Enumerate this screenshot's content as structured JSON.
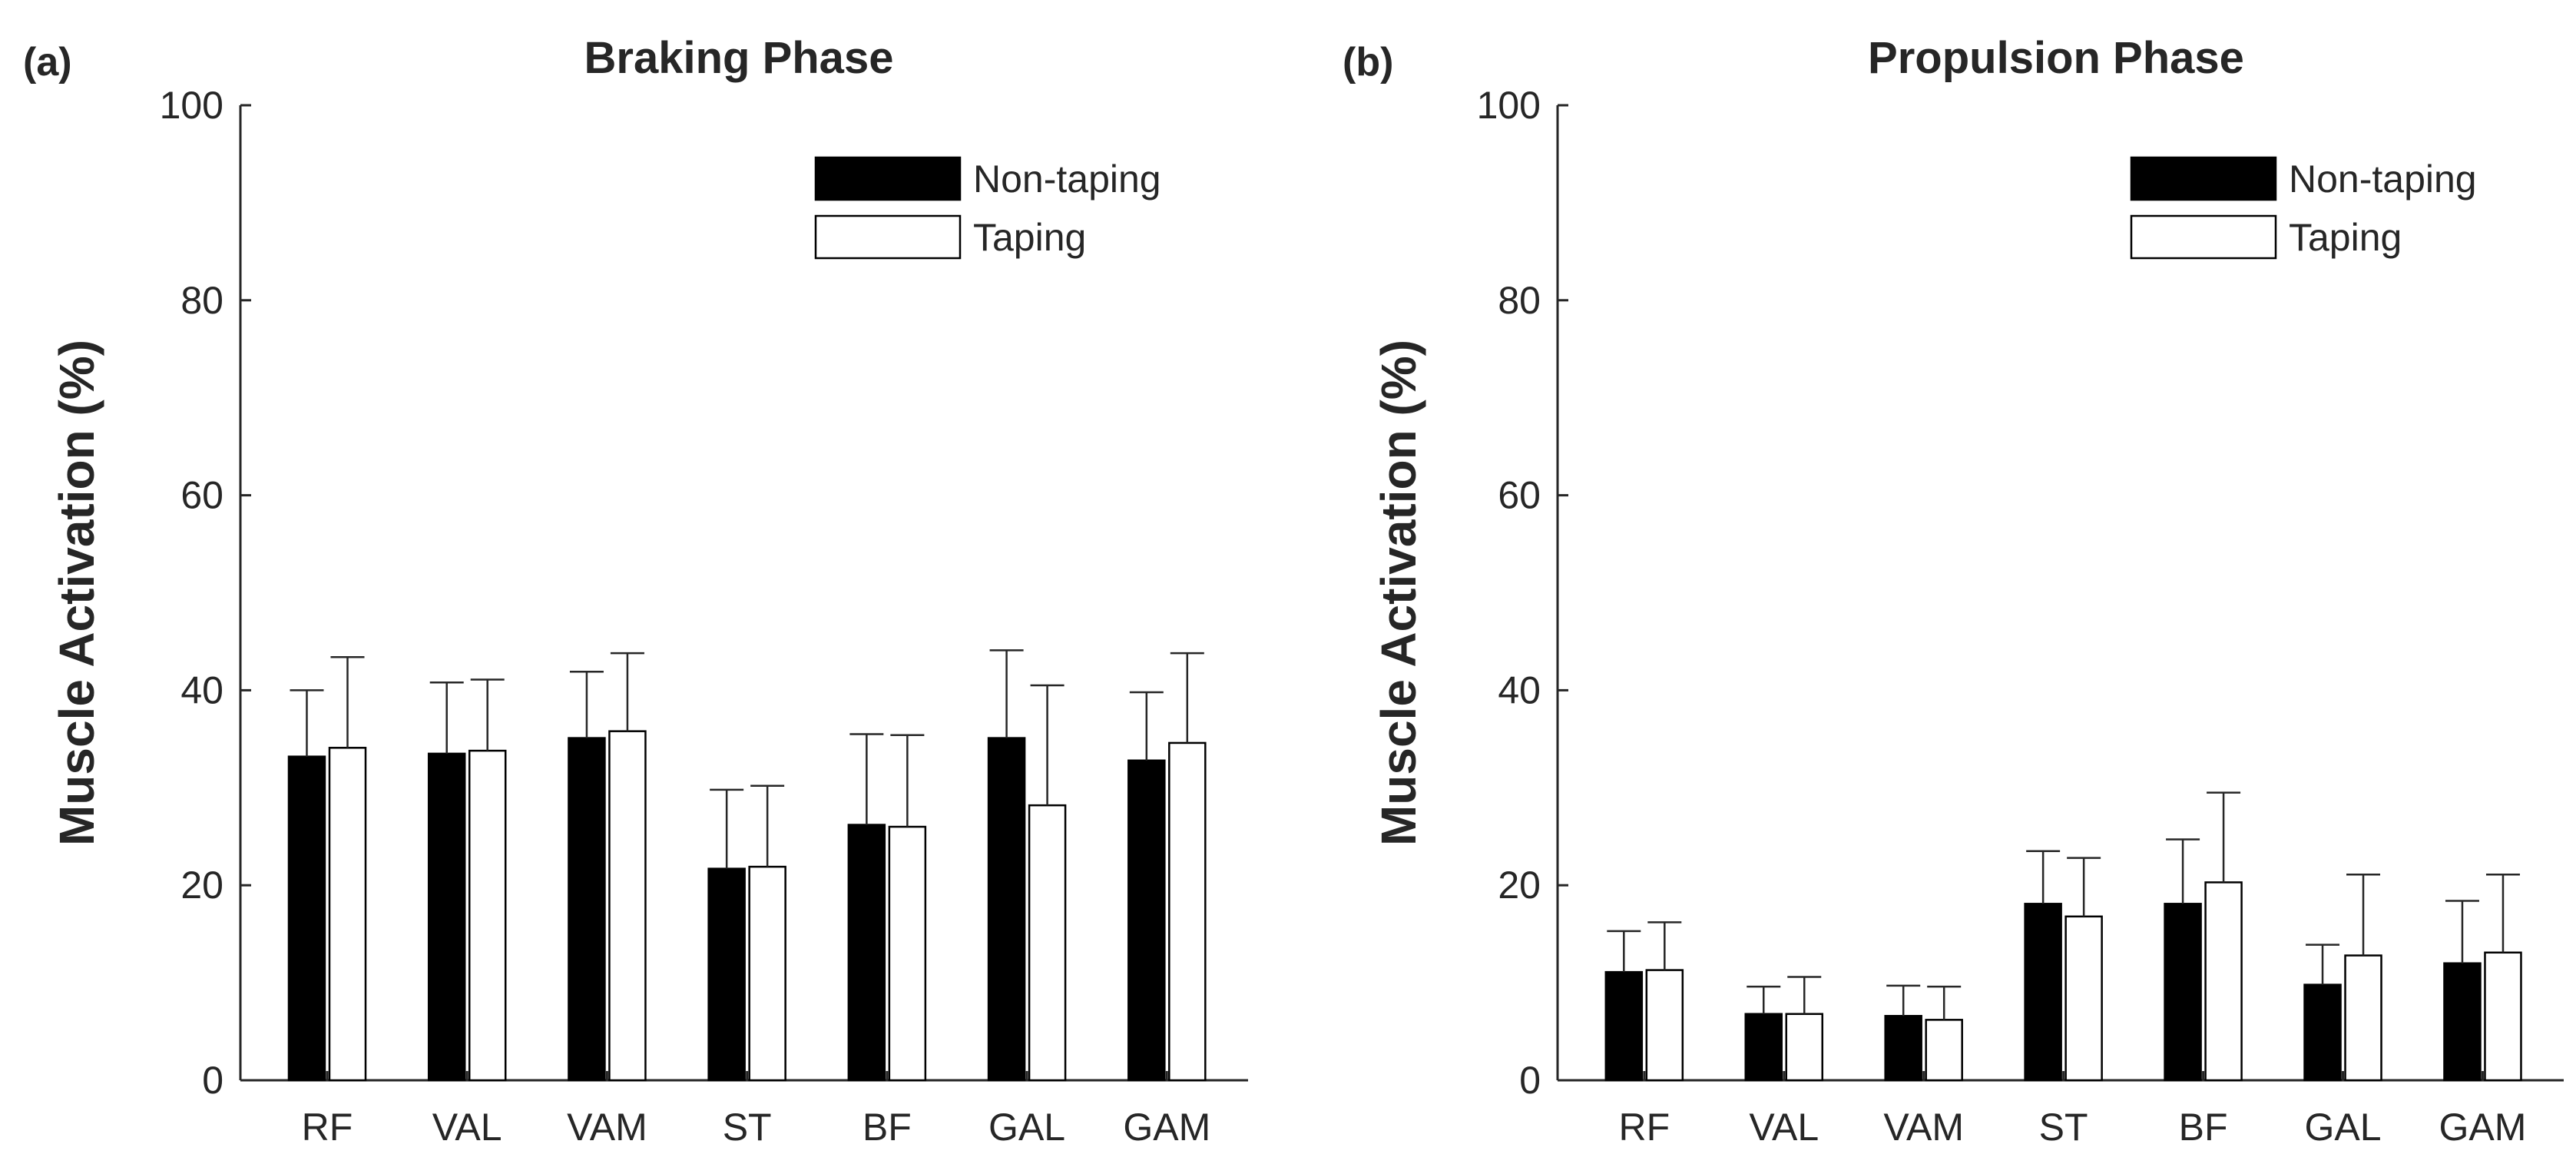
{
  "chart_data": [
    {
      "type": "bar",
      "panel_label": "(a)",
      "title": "Braking Phase",
      "xlabel": "",
      "ylabel": "Muscle Activation (%)",
      "ylim": [
        0,
        100
      ],
      "yticks": [
        0,
        20,
        40,
        60,
        80,
        100
      ],
      "categories": [
        "RF",
        "VAL",
        "VAM",
        "ST",
        "BF",
        "GAL",
        "GAM"
      ],
      "legend_position": "top-right",
      "series": [
        {
          "name": "Non-taping",
          "color": "#000000",
          "values": [
            33.2,
            33.5,
            35.1,
            21.7,
            26.2,
            35.1,
            32.8
          ],
          "errors": [
            6.8,
            7.3,
            6.8,
            8.1,
            9.3,
            9.0,
            7.0
          ]
        },
        {
          "name": "Taping",
          "color": "#ffffff",
          "values": [
            34.1,
            33.8,
            35.8,
            21.9,
            26.0,
            28.2,
            34.6
          ],
          "errors": [
            9.3,
            7.3,
            8.0,
            8.3,
            9.4,
            12.3,
            9.2
          ]
        }
      ]
    },
    {
      "type": "bar",
      "panel_label": "(b)",
      "title": "Propulsion Phase",
      "xlabel": "",
      "ylabel": "Muscle Activation (%)",
      "ylim": [
        0,
        100
      ],
      "yticks": [
        0,
        20,
        40,
        60,
        80,
        100
      ],
      "categories": [
        "RF",
        "VAL",
        "VAM",
        "ST",
        "BF",
        "GAL",
        "GAM"
      ],
      "legend_position": "top-right",
      "series": [
        {
          "name": "Non-taping",
          "color": "#000000",
          "values": [
            11.1,
            6.8,
            6.6,
            18.1,
            18.1,
            9.8,
            12.0
          ],
          "errors": [
            4.2,
            2.8,
            3.1,
            5.4,
            6.6,
            4.1,
            6.4
          ]
        },
        {
          "name": "Taping",
          "color": "#ffffff",
          "values": [
            11.3,
            6.8,
            6.2,
            16.8,
            20.3,
            12.8,
            13.1
          ],
          "errors": [
            4.9,
            3.8,
            3.4,
            6.0,
            9.2,
            8.3,
            8.0
          ]
        }
      ]
    }
  ]
}
